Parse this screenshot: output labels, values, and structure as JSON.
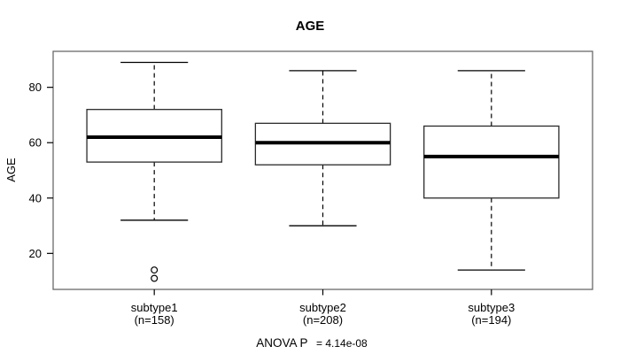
{
  "figure_title": "AGE",
  "chart_data": {
    "type": "boxplot",
    "title": "AGE",
    "xlabel": "",
    "ylabel": "AGE",
    "ylim": [
      7,
      93
    ],
    "yticks": [
      20,
      40,
      60,
      80
    ],
    "grid": false,
    "legend": "none",
    "x_positions": [
      1,
      2,
      3
    ],
    "xlim": [
      0.4,
      3.6
    ],
    "groups": [
      {
        "label": "subtype1",
        "count_label": "(n=158)",
        "n": 158,
        "whisker_low": 32,
        "q1": 53,
        "median": 62,
        "q3": 72,
        "whisker_high": 89,
        "outliers": [
          14,
          11
        ]
      },
      {
        "label": "subtype2",
        "count_label": "(n=208)",
        "n": 208,
        "whisker_low": 30,
        "q1": 52,
        "median": 60,
        "q3": 67,
        "whisker_high": 86,
        "outliers": []
      },
      {
        "label": "subtype3",
        "count_label": "(n=194)",
        "n": 194,
        "whisker_low": 14,
        "q1": 40,
        "median": 55,
        "q3": 66,
        "whisker_high": 86,
        "outliers": []
      }
    ],
    "annotation": {
      "prefix": "ANOVA P",
      "equals_value": "= 4.14e-08",
      "full_text": "ANOVA P = 4.14e-08"
    }
  },
  "style": {
    "frame_color": "#6a6a6a",
    "box_color": "#2b2b2b",
    "data_color": "#000000",
    "fill_color": "#ffffff"
  }
}
